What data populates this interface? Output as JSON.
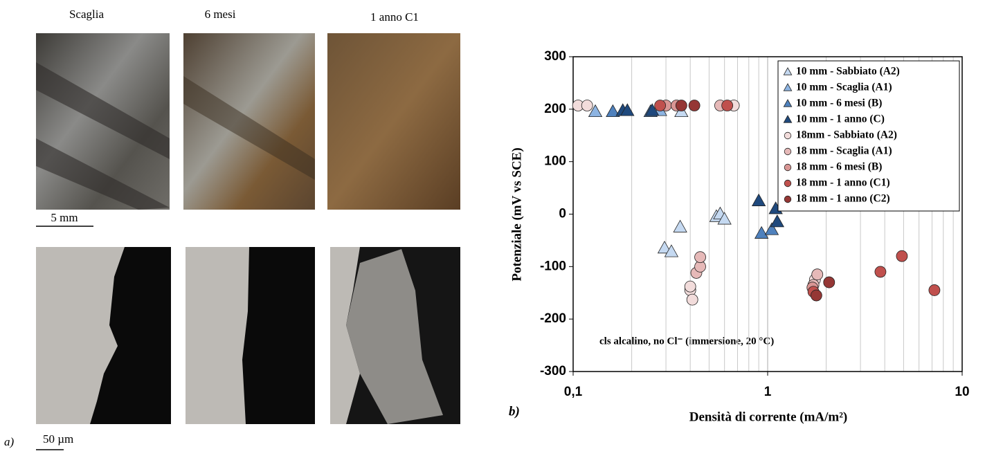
{
  "panel_a": {
    "label": "a)",
    "titles": [
      "Scaglia",
      "6 mesi",
      "1 anno C1"
    ],
    "scale_top": "5 mm",
    "scale_bottom": "50 µm"
  },
  "chart_data": {
    "type": "scatter",
    "panel_label": "b)",
    "x_label": "Densità di corrente (mA/m²)",
    "y_label": "Potenziale (mV vs SCE)",
    "annotation": "cls alcalino, no Cl⁻ (immersione, 20 °C)",
    "x_scale": "log",
    "xlim": [
      0.1,
      10
    ],
    "xticks": [
      {
        "value": 0.1,
        "label": "0,1"
      },
      1,
      10
    ],
    "ylim": [
      -300,
      300
    ],
    "yticks": [
      -300,
      -200,
      -100,
      0,
      100,
      200,
      300
    ],
    "grid": true,
    "legend": "upper right",
    "series": [
      {
        "name": "10 mm - Sabbiato (A2)",
        "color": "#c5d9f1",
        "marker": "triangle",
        "x": [
          0.36,
          0.295,
          0.32,
          0.355,
          0.545,
          0.57,
          0.6
        ],
        "values": [
          195,
          -65,
          -72,
          -25,
          -5,
          0,
          -10
        ]
      },
      {
        "name": "10 mm - Scaglia (A1)",
        "color": "#8db4e2",
        "marker": "triangle",
        "x": [
          0.13,
          0.28
        ],
        "values": [
          195,
          197
        ]
      },
      {
        "name": "10 mm - 6 mesi (B)",
        "color": "#4f81bd",
        "marker": "triangle",
        "x": [
          0.16,
          0.25,
          0.93,
          1.05
        ],
        "values": [
          195,
          195,
          -37,
          -30
        ]
      },
      {
        "name": "10 mm - 1 anno (C)",
        "color": "#1f497d",
        "marker": "triangle",
        "x": [
          0.18,
          0.19,
          0.255,
          0.9,
          1.1,
          1.12
        ],
        "values": [
          197,
          197,
          197,
          25,
          10,
          -15
        ]
      },
      {
        "name": "18mm - Sabbiato (A2)",
        "color": "#f2dcdb",
        "marker": "circle",
        "x": [
          0.106,
          0.118,
          0.67,
          0.4,
          0.41,
          0.4,
          1.75
        ],
        "values": [
          207,
          207,
          207,
          -145,
          -163,
          -138,
          -125
        ]
      },
      {
        "name": "18 mm - Scaglia (A1)",
        "color": "#e6b9b8",
        "marker": "circle",
        "x": [
          0.57,
          0.43,
          0.45,
          0.45,
          1.8,
          1.72
        ],
        "values": [
          207,
          -112,
          -100,
          -82,
          -115,
          -135
        ]
      },
      {
        "name": "18 mm - 6 mesi (B)",
        "color": "#d99694",
        "marker": "circle",
        "x": [
          0.3,
          0.34,
          1.7
        ],
        "values": [
          207,
          207,
          -140
        ]
      },
      {
        "name": "18 mm - 1 anno (C1)",
        "color": "#c0504d",
        "marker": "circle",
        "x": [
          0.28,
          0.62,
          1.72,
          3.8,
          7.2,
          4.9
        ],
        "values": [
          207,
          207,
          -148,
          -110,
          -145,
          -80
        ]
      },
      {
        "name": "18 mm - 1 anno (C2)",
        "color": "#953735",
        "marker": "circle",
        "x": [
          0.36,
          0.42,
          1.78,
          2.07
        ],
        "values": [
          207,
          207,
          -155,
          -130
        ]
      }
    ]
  }
}
